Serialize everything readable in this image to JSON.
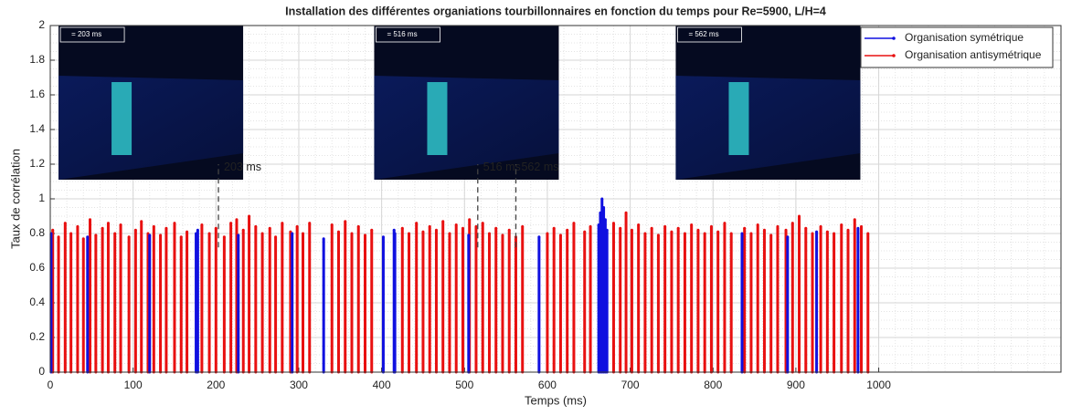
{
  "chart_data": {
    "type": "stem",
    "title": "Installation des différentes organiations tourbillonnaires en fonction du temps pour Re=5900, L/H=4",
    "x_label": "Temps (ms)",
    "y_label": "Taux de corrélation",
    "xlim": [
      0,
      1220
    ],
    "ylim": [
      0,
      2
    ],
    "xticks": [
      0,
      100,
      200,
      300,
      400,
      500,
      600,
      700,
      800,
      900,
      1000
    ],
    "yticks": [
      0,
      0.2,
      0.4,
      0.6,
      0.8,
      1,
      1.2,
      1.4,
      1.6,
      1.8,
      2
    ],
    "grid": true,
    "minor_grid": true,
    "legend": "upper right",
    "series": [
      {
        "name": "Organisation symétrique",
        "color": "#1010e0",
        "x": [
          1,
          45,
          120,
          176,
          178,
          227,
          292,
          330,
          402,
          415,
          416,
          505,
          590,
          662,
          664,
          666,
          668,
          670,
          672,
          835,
          890,
          925,
          975
        ],
        "values": [
          0.8,
          0.78,
          0.79,
          0.8,
          0.82,
          0.79,
          0.8,
          0.77,
          0.78,
          0.82,
          0.8,
          0.79,
          0.78,
          0.85,
          0.92,
          1.0,
          0.95,
          0.88,
          0.82,
          0.8,
          0.78,
          0.81,
          0.83
        ]
      },
      {
        "name": "Organisation antisymétrique",
        "color": "#e81010",
        "x": [
          3,
          10,
          18,
          25,
          33,
          40,
          48,
          55,
          63,
          70,
          78,
          85,
          95,
          103,
          110,
          118,
          125,
          133,
          140,
          150,
          158,
          165,
          183,
          192,
          200,
          210,
          218,
          225,
          233,
          240,
          248,
          256,
          265,
          272,
          280,
          290,
          298,
          305,
          313,
          340,
          348,
          356,
          364,
          372,
          380,
          388,
          425,
          433,
          442,
          450,
          458,
          466,
          474,
          482,
          490,
          498,
          506,
          514,
          522,
          530,
          538,
          546,
          554,
          562,
          570,
          600,
          608,
          616,
          624,
          632,
          645,
          652,
          680,
          688,
          695,
          702,
          710,
          718,
          726,
          734,
          742,
          750,
          758,
          766,
          774,
          782,
          790,
          798,
          806,
          814,
          822,
          838,
          846,
          854,
          862,
          870,
          878,
          888,
          896,
          904,
          912,
          920,
          930,
          938,
          946,
          955,
          963,
          971,
          979,
          987
        ],
        "values": [
          0.82,
          0.78,
          0.86,
          0.8,
          0.84,
          0.77,
          0.88,
          0.79,
          0.83,
          0.86,
          0.8,
          0.85,
          0.78,
          0.82,
          0.87,
          0.8,
          0.84,
          0.79,
          0.83,
          0.86,
          0.78,
          0.81,
          0.85,
          0.8,
          0.83,
          0.78,
          0.86,
          0.88,
          0.82,
          0.9,
          0.84,
          0.8,
          0.83,
          0.78,
          0.86,
          0.81,
          0.84,
          0.8,
          0.86,
          0.85,
          0.81,
          0.87,
          0.8,
          0.84,
          0.79,
          0.82,
          0.83,
          0.8,
          0.86,
          0.81,
          0.84,
          0.82,
          0.87,
          0.8,
          0.85,
          0.83,
          0.88,
          0.84,
          0.86,
          0.8,
          0.83,
          0.79,
          0.82,
          0.78,
          0.84,
          0.8,
          0.83,
          0.79,
          0.82,
          0.86,
          0.81,
          0.84,
          0.86,
          0.83,
          0.92,
          0.82,
          0.85,
          0.8,
          0.83,
          0.79,
          0.84,
          0.81,
          0.83,
          0.8,
          0.85,
          0.82,
          0.8,
          0.84,
          0.81,
          0.86,
          0.8,
          0.83,
          0.8,
          0.85,
          0.82,
          0.79,
          0.84,
          0.82,
          0.86,
          0.9,
          0.83,
          0.8,
          0.84,
          0.81,
          0.8,
          0.85,
          0.82,
          0.88,
          0.84,
          0.8
        ]
      }
    ],
    "annotations": [
      {
        "text": "203 ms",
        "x": 203
      },
      {
        "text": "516 ms",
        "x": 516
      },
      {
        "text": "562 ms",
        "x": 562
      }
    ],
    "insets": [
      {
        "label": "= 203 ms",
        "x": 10
      },
      {
        "label": "= 516 ms",
        "x": 391
      },
      {
        "label": "= 562 ms",
        "x": 755
      }
    ]
  }
}
